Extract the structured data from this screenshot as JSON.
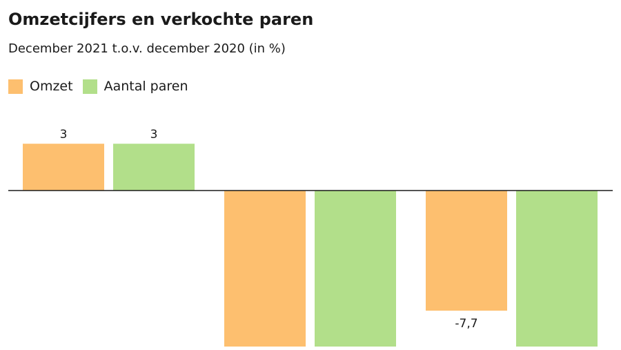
{
  "title": "Omzetcijfers en verkochte paren",
  "subtitle": "December 2021 t.o.v. december 2020 (in %)",
  "chart_data": {
    "type": "bar",
    "categories": [
      "",
      "",
      ""
    ],
    "series": [
      {
        "name": "Omzet",
        "color": "#FDBF6F",
        "values": [
          3,
          -10,
          -7.7
        ]
      },
      {
        "name": "Aantal paren",
        "color": "#B2DF8A",
        "values": [
          3,
          -10,
          -10
        ]
      }
    ],
    "data_labels": [
      {
        "series": 0,
        "index": 0,
        "text": "3"
      },
      {
        "series": 1,
        "index": 0,
        "text": "3"
      },
      {
        "series": 0,
        "index": 2,
        "text": "-7,7"
      }
    ],
    "ylim": [
      -10,
      3
    ],
    "grid": false,
    "legend": "top-left"
  }
}
